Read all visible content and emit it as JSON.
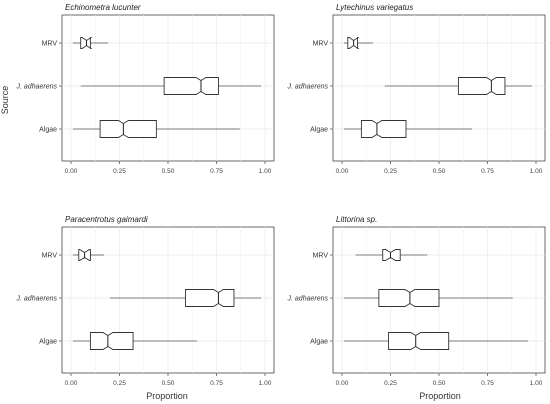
{
  "figure": {
    "ylabel": "Source",
    "xlabel": "Proportion"
  },
  "chart_data": [
    {
      "type": "box",
      "title": "Echinometra lucunter",
      "categories": [
        "MRV",
        "J. adhaerens",
        "Algae"
      ],
      "xlim": [
        0,
        1
      ],
      "xticks": [
        "0.00",
        "0.25",
        "0.50",
        "0.75",
        "1.00"
      ],
      "xlabel": "",
      "ylabel": "Source",
      "grid": true,
      "boxes": [
        {
          "category": "MRV",
          "whisker_low": 0.01,
          "q1": 0.05,
          "median": 0.08,
          "q3": 0.1,
          "whisker_high": 0.19
        },
        {
          "category": "J. adhaerens",
          "whisker_low": 0.05,
          "q1": 0.48,
          "median": 0.67,
          "q3": 0.76,
          "whisker_high": 0.98
        },
        {
          "category": "Algae",
          "whisker_low": 0.01,
          "q1": 0.15,
          "median": 0.27,
          "q3": 0.44,
          "whisker_high": 0.87
        }
      ]
    },
    {
      "type": "box",
      "title": "Lytechinus variegatus",
      "categories": [
        "MRV",
        "J. adhaerens",
        "Algae"
      ],
      "xlim": [
        0,
        1
      ],
      "xticks": [
        "0.00",
        "0.25",
        "0.50",
        "0.75",
        "1.00"
      ],
      "xlabel": "",
      "ylabel": "",
      "grid": true,
      "boxes": [
        {
          "category": "MRV",
          "whisker_low": 0.01,
          "q1": 0.03,
          "median": 0.06,
          "q3": 0.08,
          "whisker_high": 0.16
        },
        {
          "category": "J. adhaerens",
          "whisker_low": 0.22,
          "q1": 0.6,
          "median": 0.77,
          "q3": 0.84,
          "whisker_high": 0.98
        },
        {
          "category": "Algae",
          "whisker_low": 0.01,
          "q1": 0.1,
          "median": 0.18,
          "q3": 0.33,
          "whisker_high": 0.67
        }
      ]
    },
    {
      "type": "box",
      "title": "Paracentrotus gaimardi",
      "categories": [
        "MRV",
        "J. adhaerens",
        "Algae"
      ],
      "xlim": [
        0,
        1
      ],
      "xticks": [
        "0.00",
        "0.25",
        "0.50",
        "0.75",
        "1.00"
      ],
      "xlabel": "",
      "ylabel": "",
      "grid": true,
      "boxes": [
        {
          "category": "MRV",
          "whisker_low": 0.01,
          "q1": 0.04,
          "median": 0.07,
          "q3": 0.1,
          "whisker_high": 0.17
        },
        {
          "category": "J. adhaerens",
          "whisker_low": 0.2,
          "q1": 0.59,
          "median": 0.76,
          "q3": 0.84,
          "whisker_high": 0.98
        },
        {
          "category": "Algae",
          "whisker_low": 0.01,
          "q1": 0.1,
          "median": 0.19,
          "q3": 0.32,
          "whisker_high": 0.65
        }
      ]
    },
    {
      "type": "box",
      "title": "Littorina sp.",
      "categories": [
        "MRV",
        "J. adhaerens",
        "Algae"
      ],
      "xlim": [
        0,
        1
      ],
      "xticks": [
        "0.00",
        "0.25",
        "0.50",
        "0.75",
        "1.00"
      ],
      "xlabel": "Proportion",
      "ylabel": "",
      "grid": true,
      "boxes": [
        {
          "category": "MRV",
          "whisker_low": 0.07,
          "q1": 0.21,
          "median": 0.25,
          "q3": 0.3,
          "whisker_high": 0.44
        },
        {
          "category": "J. adhaerens",
          "whisker_low": 0.01,
          "q1": 0.19,
          "median": 0.35,
          "q3": 0.5,
          "whisker_high": 0.88
        },
        {
          "category": "Algae",
          "whisker_low": 0.01,
          "q1": 0.24,
          "median": 0.38,
          "q3": 0.55,
          "whisker_high": 0.96
        }
      ]
    }
  ]
}
